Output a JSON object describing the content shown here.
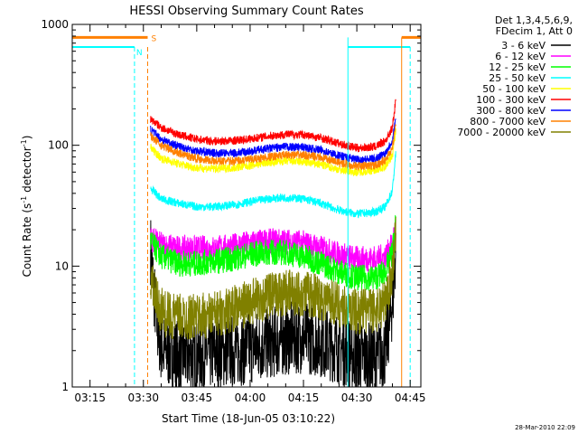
{
  "chart_data": {
    "type": "line",
    "title": "HESSI Observing Summary Count Rates",
    "xlabel": "Start Time (18-Jun-05 03:10:22)",
    "ylabel_main": "Count Rate (s",
    "ylabel_sup1": "-1",
    "ylabel_mid": " detector",
    "ylabel_sup2": "-1",
    "ylabel_end": ")",
    "yscale": "log",
    "ylim": [
      1,
      1000
    ],
    "xlim_min": [
      0,
      98
    ],
    "xticks": [
      {
        "t": 5,
        "label": "03:15"
      },
      {
        "t": 20,
        "label": "03:30"
      },
      {
        "t": 35,
        "label": "03:45"
      },
      {
        "t": 50,
        "label": "04:00"
      },
      {
        "t": 65,
        "label": "04:15"
      },
      {
        "t": 80,
        "label": "04:30"
      },
      {
        "t": 95,
        "label": "04:45"
      }
    ],
    "yticks": [
      {
        "v": 1,
        "label": "1"
      },
      {
        "v": 10,
        "label": "10"
      },
      {
        "v": 100,
        "label": "100"
      },
      {
        "v": 1000,
        "label": "1000"
      }
    ],
    "legend_header1": "Det 1,3,4,5,6,9,",
    "legend_header2": "FDecim 1, Att 0",
    "series": [
      {
        "name": "3 - 6 keV",
        "color": "#000000",
        "points": [
          [
            22,
            14
          ],
          [
            23,
            6
          ],
          [
            24,
            3
          ],
          [
            25,
            2.2
          ],
          [
            26,
            2
          ],
          [
            30,
            1.8
          ],
          [
            35,
            1.8
          ],
          [
            40,
            1.9
          ],
          [
            45,
            2
          ],
          [
            50,
            2.1
          ],
          [
            55,
            2.3
          ],
          [
            60,
            2.5
          ],
          [
            65,
            2.6
          ],
          [
            70,
            2.4
          ],
          [
            75,
            2.1
          ],
          [
            80,
            1.8
          ],
          [
            85,
            1.7
          ],
          [
            88,
            2
          ],
          [
            90,
            5
          ],
          [
            91,
            14
          ]
        ]
      },
      {
        "name": "6 - 12 keV",
        "color": "#ff00ff",
        "points": [
          [
            22,
            17
          ],
          [
            25,
            15
          ],
          [
            30,
            14
          ],
          [
            35,
            14
          ],
          [
            40,
            14
          ],
          [
            45,
            14.5
          ],
          [
            50,
            15.5
          ],
          [
            55,
            16
          ],
          [
            60,
            16
          ],
          [
            65,
            15.5
          ],
          [
            70,
            14
          ],
          [
            75,
            12.5
          ],
          [
            80,
            11.5
          ],
          [
            85,
            11.5
          ],
          [
            88,
            12
          ],
          [
            90,
            15
          ],
          [
            91,
            22
          ]
        ]
      },
      {
        "name": "12 - 25 keV",
        "color": "#00ff00",
        "points": [
          [
            22,
            16
          ],
          [
            25,
            12
          ],
          [
            30,
            10.5
          ],
          [
            35,
            10.5
          ],
          [
            40,
            11
          ],
          [
            45,
            11.5
          ],
          [
            50,
            12.5
          ],
          [
            55,
            13
          ],
          [
            60,
            13
          ],
          [
            65,
            12
          ],
          [
            70,
            10.5
          ],
          [
            75,
            9
          ],
          [
            80,
            8
          ],
          [
            85,
            8
          ],
          [
            88,
            9
          ],
          [
            90,
            13
          ],
          [
            91,
            24
          ]
        ]
      },
      {
        "name": "25 - 50 keV",
        "color": "#00ffff",
        "points": [
          [
            22,
            44
          ],
          [
            25,
            36
          ],
          [
            30,
            33
          ],
          [
            35,
            31
          ],
          [
            40,
            31
          ],
          [
            45,
            32
          ],
          [
            50,
            34
          ],
          [
            55,
            36
          ],
          [
            60,
            37
          ],
          [
            65,
            36
          ],
          [
            70,
            33
          ],
          [
            75,
            29
          ],
          [
            80,
            27
          ],
          [
            85,
            28
          ],
          [
            88,
            31
          ],
          [
            90,
            42
          ],
          [
            91,
            90
          ]
        ]
      },
      {
        "name": "50 - 100 keV",
        "color": "#ffff00",
        "points": [
          [
            22,
            96
          ],
          [
            25,
            78
          ],
          [
            30,
            70
          ],
          [
            35,
            65
          ],
          [
            40,
            64
          ],
          [
            45,
            65
          ],
          [
            50,
            68
          ],
          [
            55,
            72
          ],
          [
            60,
            74
          ],
          [
            65,
            73
          ],
          [
            70,
            69
          ],
          [
            75,
            63
          ],
          [
            80,
            60
          ],
          [
            85,
            62
          ],
          [
            88,
            67
          ],
          [
            90,
            82
          ],
          [
            91,
            135
          ]
        ]
      },
      {
        "name": "100 - 300 keV",
        "color": "#ff0000",
        "points": [
          [
            22,
            165
          ],
          [
            25,
            140
          ],
          [
            30,
            122
          ],
          [
            35,
            112
          ],
          [
            40,
            108
          ],
          [
            45,
            109
          ],
          [
            50,
            113
          ],
          [
            55,
            119
          ],
          [
            60,
            123
          ],
          [
            65,
            122
          ],
          [
            70,
            115
          ],
          [
            75,
            103
          ],
          [
            80,
            95
          ],
          [
            85,
            97
          ],
          [
            88,
            108
          ],
          [
            90,
            140
          ],
          [
            91,
            240
          ]
        ]
      },
      {
        "name": "300 - 800 keV",
        "color": "#0000ff",
        "points": [
          [
            22,
            135
          ],
          [
            25,
            112
          ],
          [
            30,
            98
          ],
          [
            35,
            90
          ],
          [
            40,
            86
          ],
          [
            45,
            86
          ],
          [
            50,
            89
          ],
          [
            55,
            94
          ],
          [
            60,
            97
          ],
          [
            65,
            96
          ],
          [
            70,
            91
          ],
          [
            75,
            82
          ],
          [
            80,
            76
          ],
          [
            85,
            77
          ],
          [
            88,
            86
          ],
          [
            90,
            110
          ],
          [
            91,
            175
          ]
        ]
      },
      {
        "name": "800 - 7000 keV",
        "color": "#ff8000",
        "points": [
          [
            22,
            120
          ],
          [
            25,
            100
          ],
          [
            30,
            86
          ],
          [
            35,
            78
          ],
          [
            40,
            74
          ],
          [
            45,
            74
          ],
          [
            50,
            76
          ],
          [
            55,
            80
          ],
          [
            60,
            83
          ],
          [
            65,
            83
          ],
          [
            70,
            79
          ],
          [
            75,
            72
          ],
          [
            80,
            67
          ],
          [
            85,
            68
          ],
          [
            88,
            75
          ],
          [
            90,
            95
          ],
          [
            91,
            150
          ]
        ]
      },
      {
        "name": "7000 - 20000 keV",
        "color": "#808000",
        "points": [
          [
            22,
            8
          ],
          [
            23,
            6
          ],
          [
            24,
            4.8
          ],
          [
            26,
            4
          ],
          [
            30,
            3.8
          ],
          [
            35,
            3.8
          ],
          [
            40,
            4
          ],
          [
            45,
            4.4
          ],
          [
            50,
            5
          ],
          [
            55,
            5.6
          ],
          [
            60,
            6
          ],
          [
            65,
            6
          ],
          [
            70,
            5.5
          ],
          [
            75,
            4.8
          ],
          [
            80,
            4.2
          ],
          [
            85,
            4.3
          ],
          [
            88,
            5
          ],
          [
            90,
            9
          ],
          [
            91,
            23
          ]
        ]
      }
    ],
    "night_label": "N",
    "night_level": 650,
    "night_color": "#00ffff",
    "night_intervals": [
      [
        0,
        17.5
      ],
      [
        77.5,
        95
      ]
    ],
    "saa_label": "S",
    "saa_level": 780,
    "saa_color": "#ff8000",
    "saa_intervals": [
      [
        0,
        21.2
      ],
      [
        92.6,
        98
      ]
    ],
    "markers_dashed": [
      {
        "t": 17.5,
        "color": "#00ffff"
      },
      {
        "t": 21.2,
        "color": "#ff8000"
      },
      {
        "t": 95,
        "color": "#00ffff"
      }
    ],
    "markers_solid": [
      {
        "t": 77.5,
        "color": "#00ffff"
      },
      {
        "t": 92.6,
        "color": "#ff8000"
      }
    ]
  },
  "timestamp": "28-Mar-2010 22:09"
}
